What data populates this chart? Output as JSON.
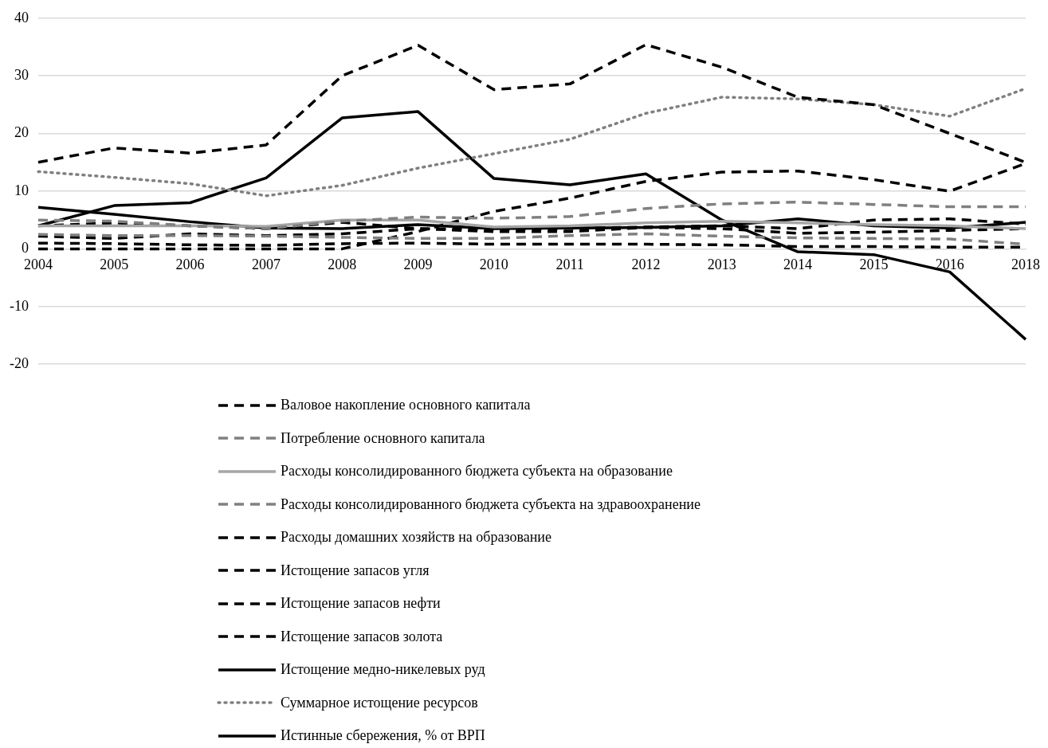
{
  "chart_data": {
    "type": "line",
    "categories": [
      "2004",
      "2005",
      "2006",
      "2007",
      "2008",
      "2009",
      "2010",
      "2011",
      "2012",
      "2013",
      "2014",
      "2015",
      "2016",
      "2018"
    ],
    "ylim": [
      -20,
      40
    ],
    "yticks": [
      -20,
      -10,
      0,
      10,
      20,
      30,
      40
    ],
    "grid": "y",
    "legend": "bottom",
    "marker": "none",
    "series": [
      {
        "name": "Валовое накопление основного капитала",
        "color": "#000000",
        "line_style": "dashed",
        "values": [
          15,
          17.5,
          16.6,
          18,
          30,
          35.3,
          27.6,
          28.6,
          35.4,
          31.5,
          26.3,
          25,
          20,
          15
        ]
      },
      {
        "name": "Потребление основного капитала",
        "color": "#808080",
        "line_style": "dashed",
        "values": [
          5,
          4.8,
          4,
          3.5,
          4.8,
          5.5,
          5.3,
          5.6,
          7,
          7.8,
          8.1,
          7.7,
          7.3,
          7.3
        ]
      },
      {
        "name": "Расходы консолидированного бюджета субъекта на образование",
        "color": "#a6a6a6",
        "line_style": "solid",
        "values": [
          4,
          4,
          4,
          3.9,
          5,
          5,
          3.8,
          4,
          4.5,
          4.8,
          4.5,
          4.2,
          4,
          3.5
        ]
      },
      {
        "name": "Расходы консолидированного бюджета субъекта на здравоохранение",
        "color": "#808080",
        "line_style": "dashed",
        "values": [
          2.5,
          2.3,
          2.3,
          2.2,
          2,
          1.8,
          1.8,
          2.3,
          2.6,
          2.2,
          1.9,
          1.8,
          1.7,
          0.8
        ]
      },
      {
        "name": "Расходы домашних хозяйств на образование",
        "color": "#000000",
        "line_style": "dashed",
        "values": [
          1,
          0.9,
          0.7,
          0.6,
          0.9,
          1,
          0.8,
          0.8,
          0.8,
          0.7,
          0.4,
          0.4,
          0.3,
          0.3
        ]
      },
      {
        "name": "Истощение запасов угля",
        "color": "#000000",
        "line_style": "dashed",
        "values": [
          4,
          4.5,
          4,
          3.5,
          4.6,
          3.5,
          3,
          3,
          3.7,
          3.5,
          2.7,
          2.9,
          3.2,
          3.5
        ]
      },
      {
        "name": "Истощение запасов нефти",
        "color": "#000000",
        "line_style": "dashed",
        "values": [
          0,
          0,
          0,
          0,
          0,
          3,
          6.5,
          8.8,
          11.7,
          13.3,
          13.5,
          12,
          10,
          14.8
        ]
      },
      {
        "name": "Истощение запасов золота",
        "color": "#000000",
        "line_style": "dashed",
        "values": [
          2.2,
          1.8,
          2.6,
          2.3,
          2.6,
          3.5,
          3.4,
          3.5,
          3.8,
          4,
          3.5,
          5,
          5.2,
          4.3
        ]
      },
      {
        "name": "Истощение медно-никелевых руд",
        "color": "#000000",
        "line_style": "solid",
        "values": [
          7.2,
          6,
          4.7,
          3.6,
          3.5,
          4.2,
          3.5,
          3.6,
          3.7,
          4,
          5.2,
          4,
          3.6,
          4.6
        ]
      },
      {
        "name": "Суммарное истощение ресурсов",
        "color": "#808080",
        "line_style": "dotted",
        "values": [
          13.4,
          12.4,
          11.3,
          9.2,
          11,
          14,
          16.5,
          19,
          23.5,
          26.3,
          26,
          25,
          23,
          27.8
        ]
      },
      {
        "name": "Истинные сбережения, % от ВРП",
        "color": "#000000",
        "line_style": "solid",
        "values": [
          4,
          7.5,
          8,
          12.3,
          22.7,
          23.8,
          12.2,
          11.1,
          13,
          5,
          -0.5,
          -1,
          -4,
          -15.7
        ]
      }
    ]
  }
}
